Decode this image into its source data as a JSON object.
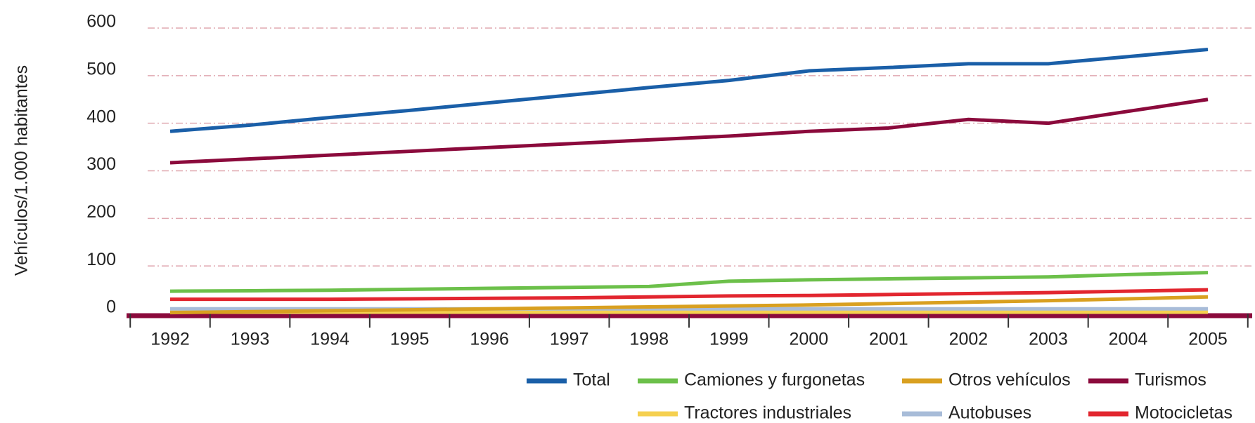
{
  "chart_data": {
    "type": "line",
    "y_label": "Vehículos/1.000 habitantes",
    "categories": [
      "1992",
      "1993",
      "1994",
      "1995",
      "1996",
      "1997",
      "1998",
      "1999",
      "2000",
      "2001",
      "2002",
      "2003",
      "2004",
      "2005"
    ],
    "ylim": [
      0,
      600
    ],
    "yticks": [
      0,
      100,
      200,
      300,
      400,
      500,
      600
    ],
    "grid": true,
    "series": [
      {
        "name": "Total",
        "color": "#1a5fa8",
        "values": [
          383,
          396,
          412,
          427,
          443,
          459,
          475,
          490,
          510,
          517,
          525,
          525,
          540,
          555
        ]
      },
      {
        "name": "Camiones y furgonetas",
        "color": "#6cc04a",
        "values": [
          47,
          48,
          49,
          51,
          53,
          55,
          57,
          68,
          71,
          73,
          75,
          77,
          82,
          86
        ]
      },
      {
        "name": "Otros vehículos",
        "color": "#d9a020",
        "values": [
          2,
          4,
          6,
          8,
          10,
          12,
          14,
          16,
          18,
          21,
          24,
          27,
          31,
          35
        ]
      },
      {
        "name": "Turismos",
        "color": "#8b0a3c",
        "values": [
          317,
          325,
          333,
          341,
          349,
          357,
          365,
          373,
          383,
          390,
          408,
          400,
          425,
          450
        ]
      },
      {
        "name": "Tractores industriales",
        "color": "#f5d050",
        "values": [
          3,
          3,
          3,
          3,
          3,
          3,
          3,
          3,
          3,
          3,
          3,
          3,
          3,
          3
        ]
      },
      {
        "name": "Autobuses",
        "color": "#a8bcd8",
        "values": [
          10,
          10,
          10,
          10,
          10,
          10,
          10,
          10,
          10,
          10,
          10,
          10,
          10,
          10
        ]
      },
      {
        "name": "Motocicletas",
        "color": "#e2262f",
        "values": [
          30,
          30,
          30,
          31,
          32,
          33,
          35,
          37,
          38,
          40,
          42,
          44,
          47,
          50
        ]
      }
    ]
  }
}
